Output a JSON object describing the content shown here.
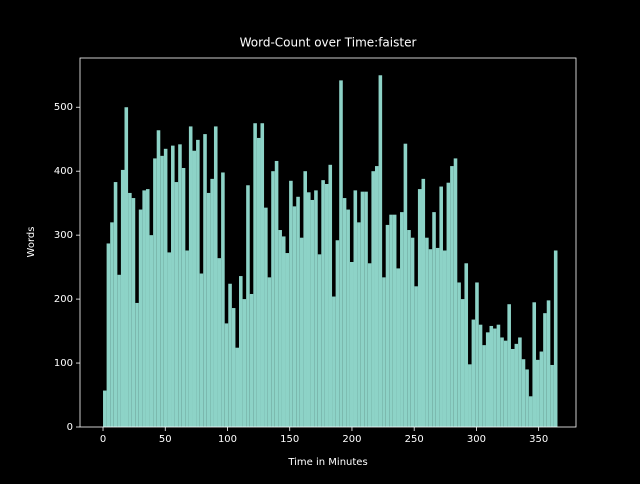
{
  "chart_data": {
    "type": "bar",
    "title": "Word-Count over Time:faister",
    "xlabel": "Time in Minutes",
    "ylabel": "Words",
    "color": "#8dd3c7",
    "x": [
      0,
      2.875,
      5.75,
      8.625,
      11.5,
      14.375,
      17.25,
      20.125,
      23,
      25.875,
      28.75,
      31.625,
      34.5,
      37.375,
      40.25,
      43.125,
      46,
      48.875,
      51.75,
      54.625,
      57.5,
      60.375,
      63.25,
      66.125,
      69,
      71.875,
      74.75,
      77.625,
      80.5,
      83.375,
      86.25,
      89.125,
      92,
      94.875,
      97.75,
      100.625,
      103.5,
      106.375,
      109.25,
      112.125,
      115,
      117.875,
      120.75,
      123.625,
      126.5,
      129.375,
      132.25,
      135.125,
      138,
      140.875,
      143.75,
      146.625,
      149.5,
      152.375,
      155.25,
      158.125,
      161,
      163.875,
      166.75,
      169.625,
      172.5,
      175.375,
      178.25,
      181.125,
      184,
      186.875,
      189.75,
      192.625,
      195.5,
      198.375,
      201.25,
      204.125,
      207,
      209.875,
      212.75,
      215.625,
      218.5,
      221.375,
      224.25,
      227.125,
      230,
      232.875,
      235.75,
      238.625,
      241.5,
      244.375,
      247.25,
      250.125,
      253,
      255.875,
      258.75,
      261.625,
      264.5,
      267.375,
      270.25,
      273.125,
      276,
      278.875,
      281.75,
      284.625,
      287.5,
      290.375,
      293.25,
      296.125,
      299,
      301.875,
      304.75,
      307.625,
      310.5,
      313.375,
      316.25,
      319.125,
      322,
      324.875,
      327.75,
      330.625,
      333.5,
      336.375,
      339.25,
      342.125,
      345,
      347.875,
      350.75,
      353.625,
      356.5,
      359.375,
      362.25
    ],
    "values": [
      57,
      287,
      320,
      383,
      238,
      402,
      500,
      366,
      358,
      194,
      340,
      370,
      372,
      300,
      420,
      464,
      424,
      435,
      273,
      440,
      383,
      442,
      405,
      276,
      470,
      432,
      449,
      240,
      458,
      366,
      388,
      470,
      264,
      398,
      162,
      224,
      186,
      124,
      236,
      200,
      378,
      208,
      475,
      452,
      475,
      343,
      234,
      400,
      416,
      308,
      298,
      272,
      385,
      345,
      360,
      296,
      400,
      367,
      355,
      370,
      270,
      386,
      380,
      410,
      204,
      292,
      542,
      358,
      340,
      258,
      370,
      320,
      368,
      368,
      256,
      400,
      408,
      550,
      234,
      316,
      332,
      332,
      248,
      336,
      443,
      308,
      296,
      220,
      372,
      388,
      296,
      278,
      336,
      280,
      376,
      276,
      382,
      408,
      420,
      226,
      200,
      256,
      98,
      168,
      226,
      160,
      128,
      148,
      158,
      154,
      160,
      140,
      135,
      192,
      122,
      130,
      140,
      106,
      90,
      48,
      195,
      105,
      118,
      178,
      198,
      97,
      276
    ],
    "xlim": [
      -18.5,
      380
    ],
    "ylim": [
      0,
      577
    ],
    "xticks": [
      0,
      50,
      100,
      150,
      200,
      250,
      300,
      350
    ],
    "yticks": [
      0,
      100,
      200,
      300,
      400,
      500
    ]
  }
}
